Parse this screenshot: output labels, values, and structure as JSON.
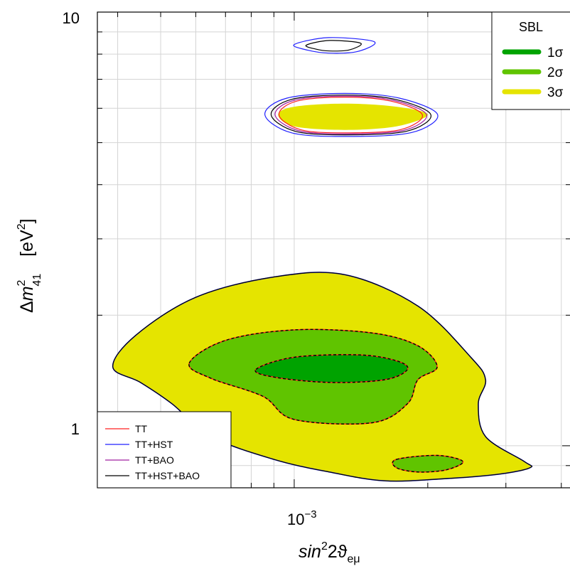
{
  "chart_data": {
    "type": "contour",
    "xlabel": {
      "base": "sin",
      "sup": "2",
      "mid": "2ϑ",
      "sub": "eμ"
    },
    "ylabel": {
      "base": "Δm",
      "sup": "2",
      "sub": "41",
      "unit_open": "[eV",
      "unit_sup": "2",
      "unit_close": "]"
    },
    "x_scale": "log",
    "y_scale": "log",
    "xlim": [
      0.00036,
      0.0042
    ],
    "ylim": [
      0.8,
      10
    ],
    "x_tick_label": {
      "base": "10",
      "exp": "−3",
      "value": 0.001
    },
    "y_tick_labels": [
      {
        "text": "10",
        "value": 10
      },
      {
        "text": "1",
        "value": 1
      }
    ],
    "grid": true,
    "legend_sbl": {
      "title": "SBL",
      "placement": "top-right",
      "entries": [
        {
          "label": "1σ",
          "color": "#00a300"
        },
        {
          "label": "2σ",
          "color": "#60c400"
        },
        {
          "label": "3σ",
          "color": "#e5e400"
        }
      ]
    },
    "legend_lines": {
      "placement": "bottom-left",
      "entries": [
        {
          "label": "TT",
          "color": "#ff2020"
        },
        {
          "label": "TT+HST",
          "color": "#2020ff"
        },
        {
          "label": "TT+BAO",
          "color": "#a020a0"
        },
        {
          "label": "TT+HST+BAO",
          "color": "#000000"
        }
      ]
    },
    "regions": {
      "sbl_3sigma_main": [
        [
          0.00039,
          1.52
        ],
        [
          0.00044,
          1.8
        ],
        [
          0.0006,
          2.2
        ],
        [
          0.0009,
          2.45
        ],
        [
          0.0013,
          2.48
        ],
        [
          0.0019,
          2.1
        ],
        [
          0.0025,
          1.6
        ],
        [
          0.0027,
          1.42
        ],
        [
          0.0026,
          1.25
        ],
        [
          0.0027,
          1.05
        ],
        [
          0.0033,
          0.92
        ],
        [
          0.0034,
          0.89
        ],
        [
          0.0029,
          0.86
        ],
        [
          0.0022,
          0.84
        ],
        [
          0.0016,
          0.83
        ],
        [
          0.0012,
          0.87
        ],
        [
          0.0009,
          0.93
        ],
        [
          0.00065,
          1.05
        ],
        [
          0.00053,
          1.25
        ],
        [
          0.00045,
          1.4
        ]
      ],
      "sbl_3sigma_upper": [
        [
          0.00092,
          5.8
        ],
        [
          0.001,
          6.05
        ],
        [
          0.0013,
          6.15
        ],
        [
          0.0017,
          6.05
        ],
        [
          0.002,
          5.8
        ],
        [
          0.0017,
          5.45
        ],
        [
          0.0013,
          5.35
        ],
        [
          0.001,
          5.45
        ]
      ],
      "sbl_2sigma_main": [
        [
          0.00058,
          1.55
        ],
        [
          0.0007,
          1.75
        ],
        [
          0.001,
          1.85
        ],
        [
          0.0015,
          1.82
        ],
        [
          0.0019,
          1.7
        ],
        [
          0.0021,
          1.52
        ],
        [
          0.0019,
          1.42
        ],
        [
          0.0018,
          1.25
        ],
        [
          0.0015,
          1.13
        ],
        [
          0.001,
          1.15
        ],
        [
          0.00085,
          1.3
        ],
        [
          0.00065,
          1.43
        ]
      ],
      "sbl_2sigma_small": [
        [
          0.0017,
          0.93
        ],
        [
          0.0021,
          0.95
        ],
        [
          0.0024,
          0.92
        ],
        [
          0.0022,
          0.88
        ],
        [
          0.0019,
          0.87
        ],
        [
          0.0017,
          0.89
        ]
      ],
      "sbl_1sigma_main": [
        [
          0.00082,
          1.5
        ],
        [
          0.001,
          1.6
        ],
        [
          0.0014,
          1.62
        ],
        [
          0.0017,
          1.57
        ],
        [
          0.0018,
          1.5
        ],
        [
          0.0016,
          1.42
        ],
        [
          0.0012,
          1.4
        ],
        [
          0.0009,
          1.44
        ]
      ],
      "contours_upper": [
        [
          0.00088,
          5.8
        ],
        [
          0.00098,
          6.3
        ],
        [
          0.0013,
          6.45
        ],
        [
          0.0017,
          6.3
        ],
        [
          0.00205,
          5.8
        ],
        [
          0.0018,
          5.3
        ],
        [
          0.0013,
          5.2
        ],
        [
          0.001,
          5.3
        ]
      ],
      "contours_top": [
        [
          0.00104,
          8.4
        ],
        [
          0.0012,
          8.65
        ],
        [
          0.00145,
          8.5
        ],
        [
          0.00135,
          8.15
        ],
        [
          0.0012,
          8.1
        ],
        [
          0.0011,
          8.2
        ]
      ]
    }
  }
}
